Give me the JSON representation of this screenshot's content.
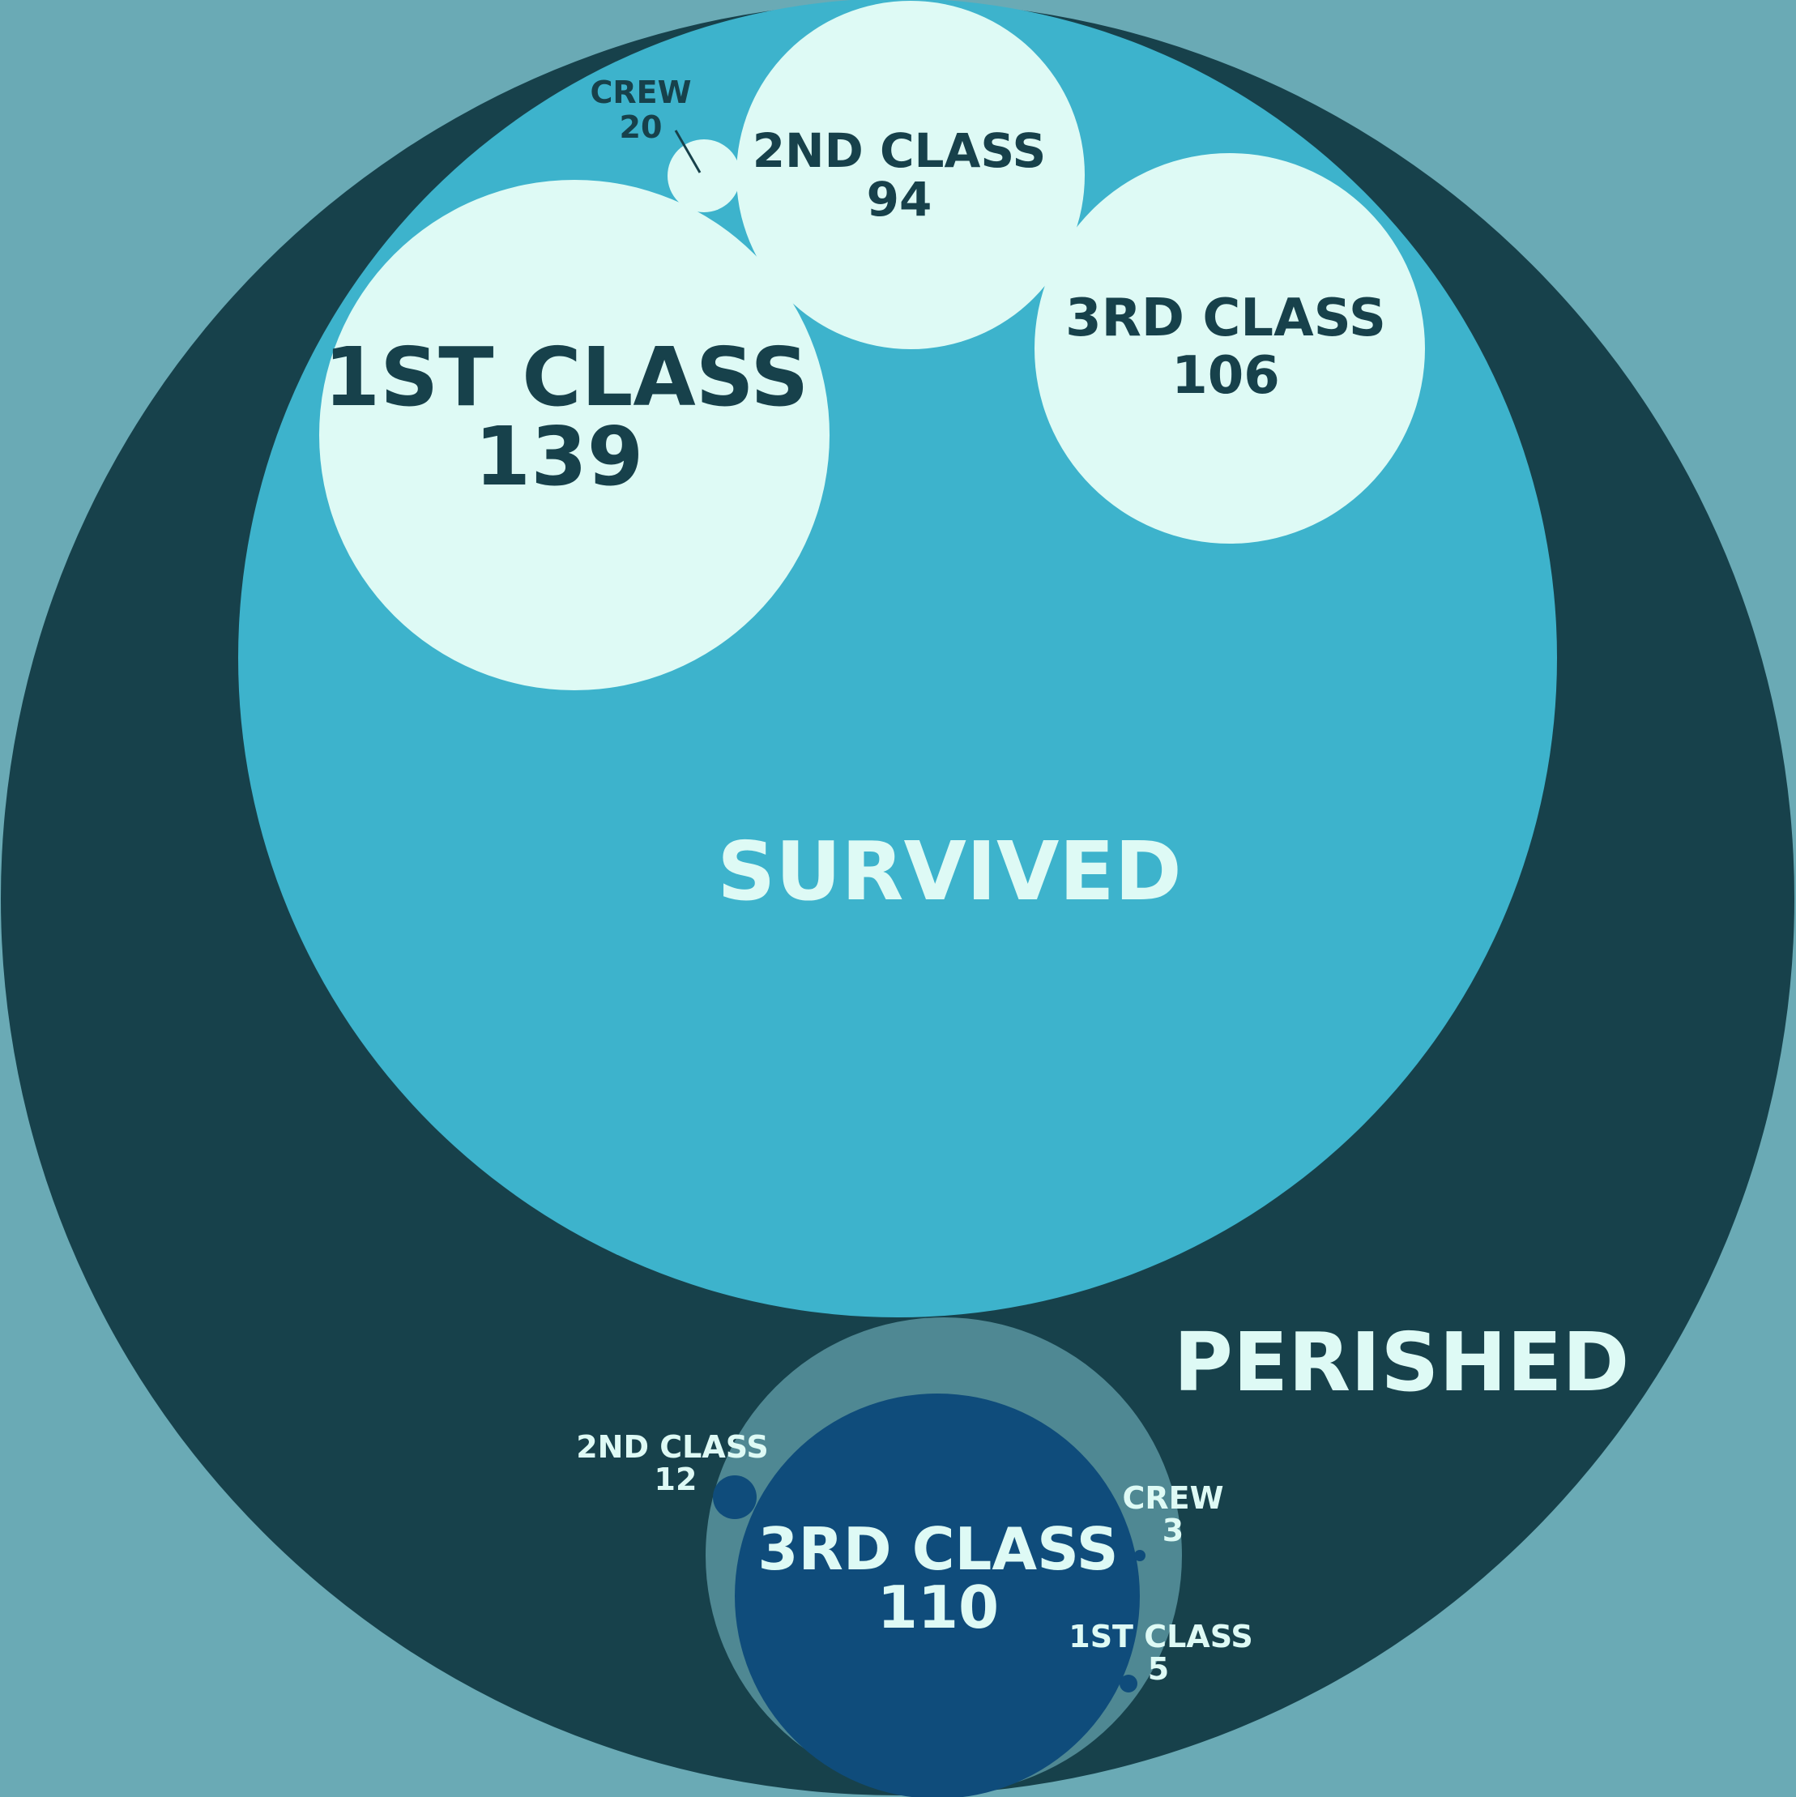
{
  "colors": {
    "background": "#6aaab5",
    "outer": "#17414b",
    "survived": "#3db3cc",
    "survived_leaf": "#defaf5",
    "survived_text": "#17414b",
    "perished_group": "#4f8893",
    "perished_leaf": "#0f4c7b",
    "perished_text": "#defaf5"
  },
  "chart_data": {
    "type": "packed-circles",
    "groups": [
      {
        "name": "SURVIVED",
        "children": [
          {
            "name": "1ST CLASS",
            "value": 139
          },
          {
            "name": "2ND CLASS",
            "value": 94
          },
          {
            "name": "3RD CLASS",
            "value": 106
          },
          {
            "name": "CREW",
            "value": 20
          }
        ]
      },
      {
        "name": "PERISHED",
        "children": [
          {
            "name": "3RD CLASS",
            "value": 110
          },
          {
            "name": "2ND CLASS",
            "value": 12
          },
          {
            "name": "CREW",
            "value": 3
          },
          {
            "name": "1ST CLASS",
            "value": 5
          }
        ]
      }
    ]
  }
}
